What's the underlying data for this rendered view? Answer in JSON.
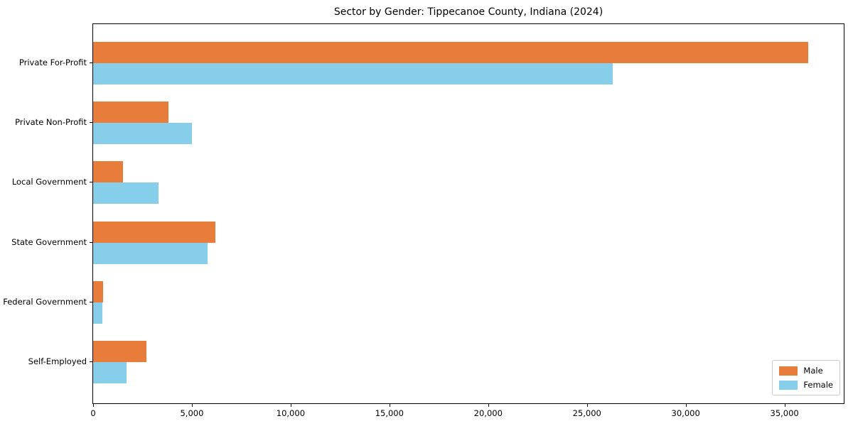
{
  "chart_data": {
    "type": "bar",
    "orientation": "horizontal",
    "title": "Sector by Gender: Tippecanoe County, Indiana (2024)",
    "categories": [
      "Private For-Profit",
      "Private Non-Profit",
      "Local Government",
      "State Government",
      "Federal Government",
      "Self-Employed"
    ],
    "series": [
      {
        "name": "Male",
        "color": "#e87d3b",
        "values": [
          36200,
          3800,
          1500,
          6200,
          500,
          2700
        ]
      },
      {
        "name": "Female",
        "color": "#87ceeb",
        "values": [
          26300,
          5000,
          3300,
          5800,
          480,
          1700
        ]
      }
    ],
    "xlabel": "",
    "ylabel": "",
    "xlim": [
      0,
      38000
    ],
    "xticks": [
      0,
      5000,
      10000,
      15000,
      20000,
      25000,
      30000,
      35000
    ],
    "xtick_labels": [
      "0",
      "5,000",
      "10,000",
      "15,000",
      "20,000",
      "25,000",
      "30,000",
      "35,000"
    ],
    "legend": {
      "position": "lower right",
      "entries": [
        "Male",
        "Female"
      ]
    },
    "grid": false,
    "axis_color": "#000000",
    "background_color": "#ffffff"
  }
}
